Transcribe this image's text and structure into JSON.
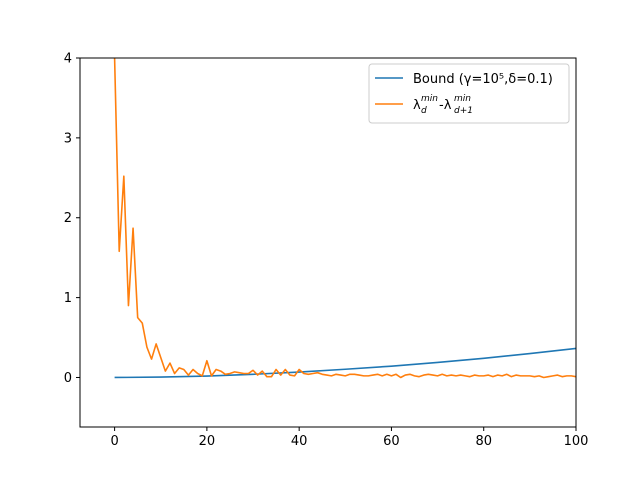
{
  "chart_data": {
    "type": "line",
    "title": "",
    "xlabel": "",
    "ylabel": "",
    "xlim": [
      -7.5,
      100
    ],
    "ylim": [
      -0.62,
      4
    ],
    "xticks": [
      "0",
      "20",
      "40",
      "60",
      "80",
      "100"
    ],
    "yticks": [
      "0",
      "1",
      "2",
      "3",
      "4"
    ],
    "grid": false,
    "legend_placement": "top-right",
    "series": [
      {
        "name": "Bound (γ=10⁵,δ=0.1)",
        "color": "#1f77b4",
        "formula_note": "",
        "x": [
          0,
          10,
          20,
          30,
          40,
          50,
          60,
          70,
          80,
          90,
          100
        ],
        "y": [
          0.0,
          0.005,
          0.018,
          0.04,
          0.068,
          0.103,
          0.142,
          0.188,
          0.24,
          0.299,
          0.364
        ]
      },
      {
        "name": "λ_d^min -λ_{d+1}^min",
        "name_parts": {
          "lambda": "λ",
          "sub1": "d",
          "sup": "min",
          "sep": " -λ",
          "sub2": "d+1"
        },
        "color": "#ff7f0e",
        "x": [
          0,
          1,
          2,
          3,
          4,
          5,
          6,
          7,
          8,
          9,
          10,
          11,
          12,
          13,
          14,
          15,
          16,
          17,
          18,
          19,
          20,
          21,
          22,
          23,
          24,
          25,
          26,
          27,
          28,
          29,
          30,
          31,
          32,
          33,
          34,
          35,
          36,
          37,
          38,
          39,
          40,
          41,
          42,
          43,
          44,
          45,
          46,
          47,
          48,
          49,
          50,
          51,
          52,
          53,
          54,
          55,
          56,
          57,
          58,
          59,
          60,
          61,
          62,
          63,
          64,
          65,
          66,
          67,
          68,
          69,
          70,
          71,
          72,
          73,
          74,
          75,
          76,
          77,
          78,
          79,
          80,
          81,
          82,
          83,
          84,
          85,
          86,
          87,
          88,
          89,
          90,
          91,
          92,
          93,
          94,
          95,
          96,
          97,
          98,
          99,
          100
        ],
        "y": [
          4.0,
          1.58,
          2.52,
          0.9,
          1.87,
          0.75,
          0.68,
          0.38,
          0.23,
          0.42,
          0.25,
          0.08,
          0.18,
          0.05,
          0.12,
          0.1,
          0.03,
          0.1,
          0.05,
          0.02,
          0.21,
          0.02,
          0.1,
          0.08,
          0.04,
          0.05,
          0.07,
          0.06,
          0.05,
          0.05,
          0.09,
          0.03,
          0.08,
          0.01,
          0.01,
          0.1,
          0.03,
          0.1,
          0.03,
          0.02,
          0.1,
          0.05,
          0.04,
          0.05,
          0.06,
          0.04,
          0.03,
          0.02,
          0.04,
          0.03,
          0.02,
          0.04,
          0.04,
          0.03,
          0.02,
          0.02,
          0.03,
          0.04,
          0.02,
          0.04,
          0.02,
          0.04,
          0.0,
          0.03,
          0.04,
          0.02,
          0.01,
          0.03,
          0.04,
          0.03,
          0.02,
          0.04,
          0.02,
          0.03,
          0.02,
          0.03,
          0.02,
          0.01,
          0.03,
          0.02,
          0.02,
          0.03,
          0.01,
          0.03,
          0.02,
          0.04,
          0.01,
          0.03,
          0.02,
          0.02,
          0.02,
          0.01,
          0.02,
          0.0,
          0.01,
          0.02,
          0.03,
          0.01,
          0.02,
          0.02,
          0.01
        ]
      }
    ]
  }
}
